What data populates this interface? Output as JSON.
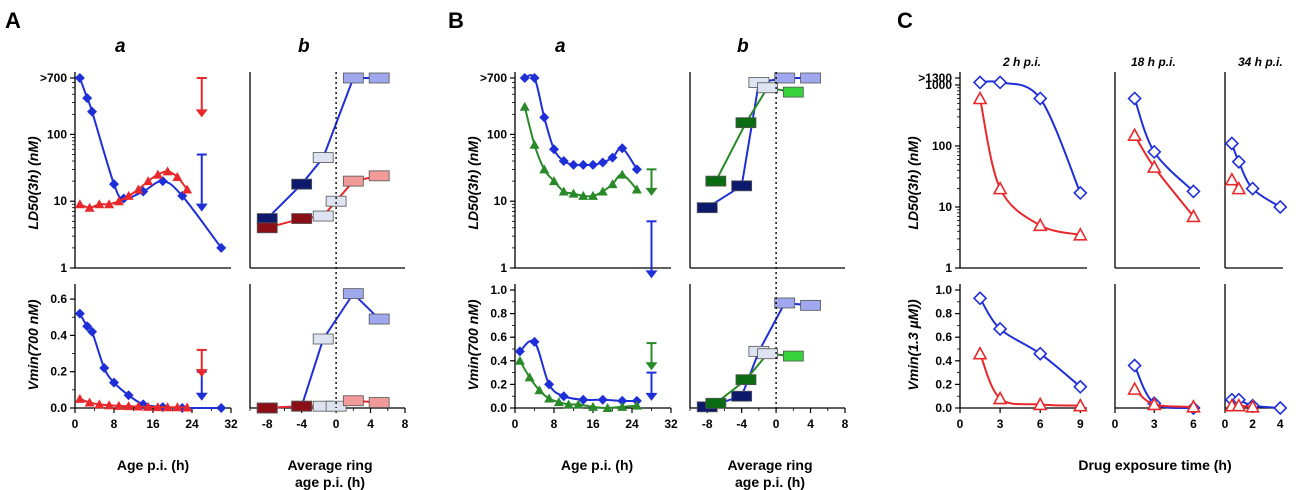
{
  "colors": {
    "blue": "#1f2fd8",
    "red": "#e8282a",
    "green": "#2a8a2a",
    "navy": "#0d1a6b",
    "darkred": "#8b0f16",
    "lightblue": "#9fa8ee",
    "pink": "#f19a9a",
    "lightgreen": "#36d33c",
    "white_box": "#dde3f0",
    "axis": "#000000"
  },
  "labels": {
    "panel_A": "A",
    "panel_B": "B",
    "panel_C": "C",
    "sub_a": "a",
    "sub_b": "b",
    "ylabel_ld50": "LD50(3h)  (nM)",
    "ylabel_vmin700": "Vmin(700 nM)",
    "ylabel_vmin13": "Vmin(1.3 µM))",
    "xlabel_age": "Age p.i. (h)",
    "xlabel_ring_1": "Average ring",
    "xlabel_ring_2": "age p.i. (h)",
    "xlabel_drug": "Drug exposure time (h)",
    "time_2h": "2 h p.i.",
    "time_18h": "18 h p.i.",
    "time_34h": "34 h p.i."
  },
  "ticks": {
    "age_x": [
      "0",
      "8",
      "16",
      "24",
      "32"
    ],
    "ring_x": [
      "-8",
      "-4",
      "0",
      "4",
      "8"
    ],
    "ld50_A": [
      "1",
      "10",
      "100",
      ">700"
    ],
    "vmin_A": [
      "0.0",
      "0.2",
      "0.4",
      "0.6"
    ],
    "ld50_B": [
      "1",
      "10",
      "100",
      ">700"
    ],
    "vmin_B": [
      "0.0",
      "0.2",
      "0.4",
      "0.6",
      "0.8",
      "1.0"
    ],
    "ld50_C": [
      "1",
      "10",
      "100",
      "1000",
      ">1300"
    ],
    "vmin_C": [
      "0.0",
      "0.2",
      "0.4",
      "0.6",
      "0.8",
      "1.0"
    ],
    "C_x1": [
      "0",
      "3",
      "6",
      "9"
    ],
    "C_x2": [
      "0",
      "3",
      "6"
    ],
    "C_x3": [
      "0",
      "2",
      "4"
    ]
  },
  "chart_data": [
    {
      "id": "A-a-LD50",
      "type": "line",
      "yscale": "log",
      "xlim": [
        0,
        32
      ],
      "ylim": [
        1,
        700
      ],
      "xlabel": "Age p.i. (h)",
      "ylabel": "LD50(3h)  (nM)",
      "series": [
        {
          "color": "blue",
          "marker": "diamond",
          "points": [
            [
              1,
              700
            ],
            [
              2.5,
              350
            ],
            [
              3.5,
              220
            ],
            [
              8,
              18
            ],
            [
              10,
              11
            ],
            [
              14,
              14
            ],
            [
              18,
              20
            ],
            [
              22,
              12
            ],
            [
              30,
              2
            ]
          ],
          "arrow_at": [
            26,
            50,
            7
          ]
        },
        {
          "color": "red",
          "marker": "triangle",
          "points": [
            [
              1,
              9
            ],
            [
              3,
              8
            ],
            [
              5,
              9
            ],
            [
              7,
              9
            ],
            [
              9,
              10
            ],
            [
              11,
              12
            ],
            [
              13,
              15
            ],
            [
              15,
              20
            ],
            [
              17,
              25
            ],
            [
              19,
              28
            ],
            [
              21,
              23
            ],
            [
              23,
              15
            ]
          ],
          "arrow_at": [
            26,
            700,
            180
          ]
        }
      ]
    },
    {
      "id": "A-b-LD50",
      "type": "line",
      "yscale": "log",
      "xlim": [
        -10,
        8
      ],
      "ylim": [
        1,
        700
      ],
      "xlabel": "Average ring age p.i. (h)",
      "series": [
        {
          "color": "blue",
          "marker": "box",
          "points": [
            [
              -8,
              5.5
            ],
            [
              -4,
              18
            ],
            [
              -1.5,
              45
            ],
            [
              2,
              700
            ],
            [
              5,
              700
            ]
          ],
          "fills": [
            "navy",
            "navy",
            "white_box",
            "lightblue",
            "lightblue"
          ]
        },
        {
          "color": "red",
          "marker": "box",
          "points": [
            [
              -8,
              4
            ],
            [
              -4,
              5.5
            ],
            [
              -1.5,
              6
            ],
            [
              0,
              10
            ],
            [
              2,
              20
            ],
            [
              5,
              24
            ]
          ],
          "fills": [
            "darkred",
            "darkred",
            "white_box",
            "white_box",
            "pink",
            "pink"
          ]
        }
      ]
    },
    {
      "id": "A-a-Vmin",
      "type": "line",
      "xlim": [
        0,
        32
      ],
      "ylim": [
        0,
        0.65
      ],
      "xlabel": "Age p.i. (h)",
      "ylabel": "Vmin(700 nM)",
      "series": [
        {
          "color": "blue",
          "marker": "diamond",
          "points": [
            [
              1,
              0.52
            ],
            [
              2.5,
              0.45
            ],
            [
              3.5,
              0.42
            ],
            [
              6,
              0.22
            ],
            [
              8,
              0.14
            ],
            [
              11,
              0.07
            ],
            [
              14,
              0.02
            ],
            [
              18,
              0.005
            ],
            [
              22,
              0.0
            ],
            [
              30,
              0.0
            ]
          ],
          "arrow_at": [
            26,
            0.2,
            0.04
          ]
        },
        {
          "color": "red",
          "marker": "triangle",
          "points": [
            [
              1,
              0.05
            ],
            [
              3,
              0.03
            ],
            [
              5,
              0.02
            ],
            [
              7,
              0.015
            ],
            [
              9,
              0.012
            ],
            [
              11,
              0.01
            ],
            [
              13,
              0.008
            ],
            [
              15,
              0.006
            ],
            [
              17,
              0.005
            ],
            [
              19,
              0.004
            ],
            [
              21,
              0.004
            ],
            [
              23,
              0.003
            ]
          ],
          "arrow_at": [
            26,
            0.32,
            0.17
          ]
        }
      ]
    },
    {
      "id": "A-b-Vmin",
      "type": "line",
      "xlim": [
        -10,
        8
      ],
      "ylim": [
        0,
        0.65
      ],
      "series": [
        {
          "color": "blue",
          "marker": "box",
          "points": [
            [
              -8,
              0.0
            ],
            [
              -4,
              0.01
            ],
            [
              -1.5,
              0.38
            ],
            [
              2,
              0.63
            ],
            [
              5,
              0.49
            ]
          ],
          "fills": [
            "navy",
            "navy",
            "white_box",
            "lightblue",
            "lightblue"
          ]
        },
        {
          "color": "red",
          "marker": "box",
          "points": [
            [
              -8,
              0.0
            ],
            [
              -4,
              0.01
            ],
            [
              -1.5,
              0.01
            ],
            [
              0,
              0.01
            ],
            [
              2,
              0.04
            ],
            [
              5,
              0.03
            ]
          ],
          "fills": [
            "darkred",
            "darkred",
            "white_box",
            "white_box",
            "pink",
            "pink"
          ]
        }
      ]
    },
    {
      "id": "B-a-LD50",
      "type": "line",
      "yscale": "log",
      "xlim": [
        0,
        32
      ],
      "ylim": [
        1,
        700
      ],
      "series": [
        {
          "color": "blue",
          "marker": "diamond",
          "points": [
            [
              2,
              700
            ],
            [
              4,
              700
            ],
            [
              6,
              180
            ],
            [
              8,
              60
            ],
            [
              10,
              40
            ],
            [
              12,
              35
            ],
            [
              14,
              35
            ],
            [
              16,
              35
            ],
            [
              18,
              38
            ],
            [
              20,
              45
            ],
            [
              22,
              62
            ],
            [
              25,
              30
            ]
          ],
          "arrow_at": [
            28,
            5,
            0.7
          ]
        },
        {
          "color": "green",
          "marker": "triangle",
          "points": [
            [
              2,
              260
            ],
            [
              4,
              70
            ],
            [
              6,
              30
            ],
            [
              8,
              20
            ],
            [
              10,
              14
            ],
            [
              12,
              13
            ],
            [
              14,
              12
            ],
            [
              16,
              12
            ],
            [
              18,
              14
            ],
            [
              20,
              18
            ],
            [
              22,
              25
            ],
            [
              25,
              15
            ]
          ],
          "arrow_at": [
            28,
            30,
            12
          ]
        }
      ]
    },
    {
      "id": "B-b-LD50",
      "type": "line",
      "yscale": "log",
      "xlim": [
        -10,
        8
      ],
      "ylim": [
        1,
        700
      ],
      "series": [
        {
          "color": "blue",
          "marker": "box",
          "points": [
            [
              -8,
              8
            ],
            [
              -4,
              17
            ],
            [
              -2,
              600
            ],
            [
              1,
              700
            ],
            [
              4,
              700
            ]
          ],
          "fills": [
            "navy",
            "navy",
            "white_box",
            "lightblue",
            "lightblue"
          ]
        },
        {
          "color": "green",
          "marker": "box",
          "points": [
            [
              -7,
              20
            ],
            [
              -3.5,
              150
            ],
            [
              -1,
              500
            ],
            [
              2,
              430
            ]
          ],
          "fills": [
            "darkgreen",
            "darkgreen",
            "white_box",
            "lightgreen"
          ]
        }
      ]
    },
    {
      "id": "B-a-Vmin",
      "type": "line",
      "xlim": [
        0,
        32
      ],
      "ylim": [
        0,
        1.0
      ],
      "series": [
        {
          "color": "blue",
          "marker": "diamond",
          "points": [
            [
              1,
              0.48
            ],
            [
              4,
              0.56
            ],
            [
              7,
              0.2
            ],
            [
              10,
              0.1
            ],
            [
              14,
              0.07
            ],
            [
              18,
              0.07
            ],
            [
              22,
              0.06
            ],
            [
              25,
              0.06
            ]
          ],
          "arrow_at": [
            28,
            0.3,
            0.06
          ]
        },
        {
          "color": "green",
          "marker": "triangle",
          "points": [
            [
              1,
              0.4
            ],
            [
              3,
              0.26
            ],
            [
              5,
              0.15
            ],
            [
              7,
              0.08
            ],
            [
              9,
              0.05
            ],
            [
              11,
              0.03
            ],
            [
              13,
              0.03
            ],
            [
              16,
              0.01
            ],
            [
              19,
              0.0
            ],
            [
              22,
              0.01
            ],
            [
              25,
              0.02
            ]
          ],
          "arrow_at": [
            28,
            0.55,
            0.32
          ]
        }
      ]
    },
    {
      "id": "B-b-Vmin",
      "type": "line",
      "xlim": [
        -10,
        8
      ],
      "ylim": [
        0,
        1.0
      ],
      "series": [
        {
          "color": "blue",
          "marker": "box",
          "points": [
            [
              -8,
              0.01
            ],
            [
              -4,
              0.1
            ],
            [
              -2,
              0.48
            ],
            [
              1,
              0.89
            ],
            [
              4,
              0.87
            ]
          ],
          "fills": [
            "navy",
            "navy",
            "white_box",
            "lightblue",
            "lightblue"
          ]
        },
        {
          "color": "green",
          "marker": "box",
          "points": [
            [
              -7,
              0.04
            ],
            [
              -3.5,
              0.24
            ],
            [
              -1,
              0.46
            ],
            [
              2,
              0.44
            ]
          ],
          "fills": [
            "darkgreen",
            "darkgreen",
            "white_box",
            "lightgreen"
          ]
        }
      ]
    },
    {
      "id": "C-LD50",
      "type": "scatter",
      "yscale": "log",
      "ylim": [
        1,
        1300
      ],
      "xlabel": "Drug exposure time (h)",
      "groups": [
        {
          "label": "2 h p.i.",
          "xlim": [
            0,
            9
          ],
          "blue": [
            [
              1.5,
              1100
            ],
            [
              3,
              1100
            ],
            [
              6,
              600
            ],
            [
              9,
              17
            ]
          ],
          "red": [
            [
              1.5,
              600
            ],
            [
              3,
              20
            ],
            [
              6,
              5
            ],
            [
              9,
              3.5
            ]
          ]
        },
        {
          "label": "18 h p.i.",
          "xlim": [
            0,
            6
          ],
          "blue": [
            [
              1.5,
              600
            ],
            [
              3,
              80
            ],
            [
              6,
              18
            ]
          ],
          "red": [
            [
              1.5,
              150
            ],
            [
              3,
              45
            ],
            [
              6,
              7
            ]
          ]
        },
        {
          "label": "34 h p.i.",
          "xlim": [
            0,
            4
          ],
          "blue": [
            [
              0.5,
              110
            ],
            [
              1,
              55
            ],
            [
              2,
              20
            ],
            [
              4,
              10
            ]
          ],
          "red": [
            [
              0.5,
              28
            ],
            [
              1,
              20
            ]
          ]
        }
      ]
    },
    {
      "id": "C-Vmin",
      "type": "scatter",
      "ylim": [
        0,
        1.0
      ],
      "groups": [
        {
          "xlim": [
            0,
            9
          ],
          "blue": [
            [
              1.5,
              0.93
            ],
            [
              3,
              0.67
            ],
            [
              6,
              0.46
            ],
            [
              9,
              0.18
            ]
          ],
          "red": [
            [
              1.5,
              0.46
            ],
            [
              3,
              0.08
            ],
            [
              6,
              0.03
            ],
            [
              9,
              0.02
            ]
          ]
        },
        {
          "xlim": [
            0,
            6
          ],
          "blue": [
            [
              1.5,
              0.36
            ],
            [
              3,
              0.04
            ],
            [
              6,
              0.0
            ]
          ],
          "red": [
            [
              1.5,
              0.16
            ],
            [
              3,
              0.03
            ],
            [
              6,
              0.01
            ]
          ]
        },
        {
          "xlim": [
            0,
            4
          ],
          "blue": [
            [
              0.5,
              0.07
            ],
            [
              1,
              0.07
            ],
            [
              2,
              0.02
            ],
            [
              4,
              0.0
            ]
          ],
          "red": [
            [
              0.5,
              0.02
            ],
            [
              1,
              0.02
            ],
            [
              2,
              0.01
            ]
          ]
        }
      ]
    }
  ]
}
